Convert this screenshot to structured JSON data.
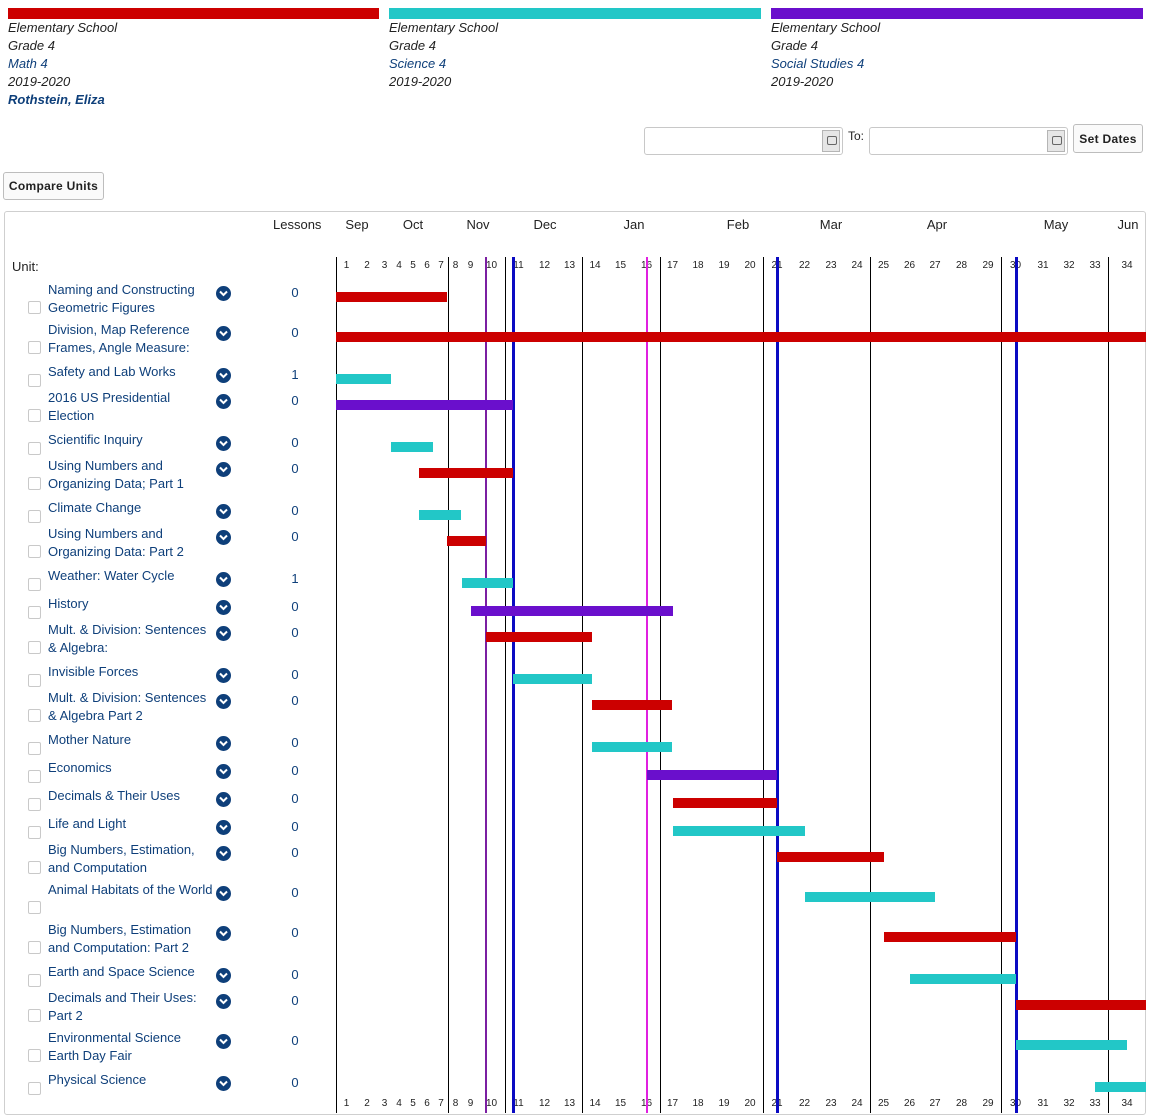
{
  "courses": [
    {
      "color": "#cc0000",
      "school": "Elementary School",
      "grade": "Grade 4",
      "course": "Math 4",
      "year": "2019-2020",
      "teacher": "Rothstein, Eliza"
    },
    {
      "color": "#22c7c7",
      "school": "Elementary School",
      "grade": "Grade 4",
      "course": "Science 4",
      "year": "2019-2020"
    },
    {
      "color": "#6a0fcc",
      "school": "Elementary School",
      "grade": "Grade 4",
      "course": "Social Studies 4",
      "year": "2019-2020"
    }
  ],
  "dates": {
    "from_value": "",
    "to_value": "",
    "to_label": "To:",
    "set_label": "Set Dates"
  },
  "compare_label": "Compare Units",
  "grid": {
    "lessons_header": "Lessons",
    "unit_header": "Unit:",
    "months": [
      "Sep",
      "Oct",
      "Nov",
      "Dec",
      "Jan",
      "Feb",
      "Mar",
      "Apr",
      "May",
      "Jun"
    ],
    "weeks": [
      "1",
      "2",
      "3",
      "4",
      "5",
      "6",
      "7",
      "8",
      "9",
      "10",
      "11",
      "12",
      "13",
      "14",
      "15",
      "16",
      "17",
      "18",
      "19",
      "20",
      "21",
      "22",
      "23",
      "24",
      "25",
      "26",
      "27",
      "28",
      "29",
      "30",
      "31",
      "32",
      "33",
      "34"
    ],
    "markers": [
      {
        "week": 9.3,
        "color": "#7b1fa2"
      },
      {
        "week": 10.3,
        "color": "#0a0ac2"
      },
      {
        "week": 15.5,
        "color": "#e020e0"
      },
      {
        "week": 20.5,
        "color": "#0a0ac2"
      },
      {
        "week": 29.5,
        "color": "#0a0ac2"
      }
    ]
  },
  "units": [
    {
      "name": "Naming and Constructing Geometric Figures",
      "lessons": "0",
      "course": 0,
      "start": 0,
      "end": 6.9
    },
    {
      "name": "Division, Map Reference Frames, Angle Measure:",
      "lessons": "0",
      "course": 0,
      "start": 0,
      "end": 34
    },
    {
      "name": "Safety and Lab Works",
      "lessons": "1",
      "course": 1,
      "start": 0,
      "end": 2.9
    },
    {
      "name": "2016 US Presidential Election",
      "lessons": "0",
      "course": 2,
      "start": 0,
      "end": 10.3
    },
    {
      "name": "Scientific Inquiry",
      "lessons": "0",
      "course": 1,
      "start": 2.9,
      "end": 5.9
    },
    {
      "name": "Using Numbers and Organizing Data; Part 1",
      "lessons": "0",
      "course": 0,
      "start": 4.9,
      "end": 10.3
    },
    {
      "name": "Climate Change",
      "lessons": "0",
      "course": 1,
      "start": 4.9,
      "end": 7.9
    },
    {
      "name": "Using Numbers and Organizing Data: Part 2",
      "lessons": "0",
      "course": 0,
      "start": 6.9,
      "end": 9.3
    },
    {
      "name": "Weather: Water Cycle",
      "lessons": "1",
      "course": 1,
      "start": 7.9,
      "end": 10.3
    },
    {
      "name": "History",
      "lessons": "0",
      "course": 2,
      "start": 8.5,
      "end": 16.5
    },
    {
      "name": "Mult. & Division: Sentences & Algebra:",
      "lessons": "0",
      "course": 0,
      "start": 9.3,
      "end": 13.4
    },
    {
      "name": "Invisible Forces",
      "lessons": "0",
      "course": 1,
      "start": 10.3,
      "end": 13.4
    },
    {
      "name": "Mult. & Division: Sentences & Algebra Part 2",
      "lessons": "0",
      "course": 0,
      "start": 13.4,
      "end": 16.5
    },
    {
      "name": "Mother Nature",
      "lessons": "0",
      "course": 1,
      "start": 13.4,
      "end": 16.5
    },
    {
      "name": "Economics",
      "lessons": "0",
      "course": 2,
      "start": 15.5,
      "end": 20.5
    },
    {
      "name": "Decimals & Their Uses",
      "lessons": "0",
      "course": 0,
      "start": 16.5,
      "end": 20.5
    },
    {
      "name": "Life and Light",
      "lessons": "0",
      "course": 1,
      "start": 16.5,
      "end": 21.5
    },
    {
      "name": "Big Numbers, Estimation, and Computation",
      "lessons": "0",
      "course": 0,
      "start": 20.5,
      "end": 24.5
    },
    {
      "name": "Animal Habitats of the World",
      "lessons": "0",
      "course": 1,
      "start": 21.5,
      "end": 26.5
    },
    {
      "name": "Big Numbers, Estimation and Computation: Part 2",
      "lessons": "0",
      "course": 0,
      "start": 24.5,
      "end": 29.5
    },
    {
      "name": "Earth and Space Science",
      "lessons": "0",
      "course": 1,
      "start": 25.5,
      "end": 29.5
    },
    {
      "name": "Decimals and Their Uses: Part 2",
      "lessons": "0",
      "course": 0,
      "start": 29.5,
      "end": 34
    },
    {
      "name": "Environmental Science Earth Day Fair",
      "lessons": "0",
      "course": 1,
      "start": 29.5,
      "end": 33.5
    },
    {
      "name": "Physical Science",
      "lessons": "0",
      "course": 1,
      "start": 32.5,
      "end": 34
    }
  ]
}
